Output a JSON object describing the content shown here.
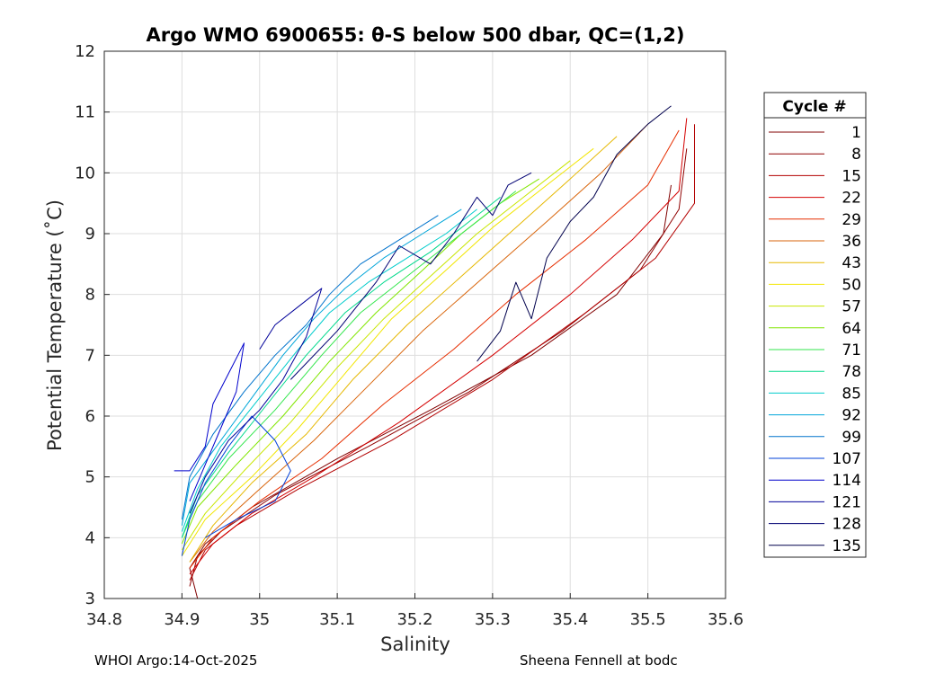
{
  "chart_data": {
    "type": "line",
    "title": "Argo WMO 6900655: θ-S below 500 dbar,  QC=(1,2)",
    "xlabel": "Salinity",
    "ylabel": "Potential Temperature (˚C)",
    "xlim": [
      34.8,
      35.6
    ],
    "ylim": [
      3,
      12
    ],
    "xticks": [
      "34.8",
      "34.9",
      "35",
      "35.1",
      "35.2",
      "35.3",
      "35.4",
      "35.5",
      "35.6"
    ],
    "yticks": [
      "3",
      "4",
      "5",
      "6",
      "7",
      "8",
      "9",
      "10",
      "11",
      "12"
    ],
    "grid": true,
    "legend_title": "Cycle #",
    "legend_position": "right",
    "series": [
      {
        "name": "1",
        "color": "#800000",
        "x": [
          34.92,
          34.91,
          34.93,
          34.99,
          35.1,
          35.22,
          35.35,
          35.46,
          35.52,
          35.53
        ],
        "y": [
          3.0,
          3.5,
          3.9,
          4.5,
          5.3,
          6.1,
          7.0,
          8.0,
          9.0,
          9.8
        ]
      },
      {
        "name": "8",
        "color": "#8f0000",
        "x": [
          34.91,
          34.92,
          34.95,
          35.02,
          35.14,
          35.27,
          35.39,
          35.49,
          35.54,
          35.55
        ],
        "y": [
          3.2,
          3.7,
          4.1,
          4.7,
          5.5,
          6.4,
          7.4,
          8.4,
          9.4,
          10.4
        ]
      },
      {
        "name": "15",
        "color": "#b30000",
        "x": [
          34.91,
          34.93,
          34.97,
          35.05,
          35.17,
          35.3,
          35.42,
          35.51,
          35.56,
          35.56
        ],
        "y": [
          3.3,
          3.8,
          4.2,
          4.8,
          5.6,
          6.6,
          7.7,
          8.6,
          9.5,
          10.8
        ]
      },
      {
        "name": "22",
        "color": "#d40000",
        "x": [
          34.91,
          34.94,
          34.99,
          35.07,
          35.18,
          35.3,
          35.4,
          35.48,
          35.54,
          35.55
        ],
        "y": [
          3.4,
          3.9,
          4.4,
          5.0,
          5.9,
          7.0,
          8.0,
          8.9,
          9.7,
          10.9
        ]
      },
      {
        "name": "29",
        "color": "#e62e00",
        "x": [
          34.91,
          34.94,
          35.0,
          35.08,
          35.16,
          35.25,
          35.33,
          35.42,
          35.5,
          35.54
        ],
        "y": [
          3.5,
          4.0,
          4.6,
          5.3,
          6.2,
          7.1,
          8.0,
          8.9,
          9.8,
          10.7
        ]
      },
      {
        "name": "36",
        "color": "#d9660d",
        "x": [
          34.91,
          34.94,
          35.0,
          35.07,
          35.14,
          35.21,
          35.29,
          35.37,
          35.44,
          35.5
        ],
        "y": [
          3.6,
          4.1,
          4.8,
          5.6,
          6.5,
          7.4,
          8.3,
          9.2,
          10.0,
          10.8
        ]
      },
      {
        "name": "43",
        "color": "#e6b800",
        "x": [
          34.91,
          34.94,
          34.99,
          35.06,
          35.12,
          35.19,
          35.26,
          35.33,
          35.4,
          35.46
        ],
        "y": [
          3.6,
          4.2,
          4.9,
          5.7,
          6.6,
          7.5,
          8.3,
          9.1,
          9.9,
          10.6
        ]
      },
      {
        "name": "50",
        "color": "#f2e600",
        "x": [
          34.9,
          34.93,
          34.99,
          35.05,
          35.11,
          35.17,
          35.24,
          35.3,
          35.37,
          35.43
        ],
        "y": [
          3.7,
          4.3,
          5.0,
          5.8,
          6.7,
          7.6,
          8.4,
          9.1,
          9.8,
          10.4
        ]
      },
      {
        "name": "57",
        "color": "#c8e600",
        "x": [
          34.9,
          34.93,
          34.98,
          35.04,
          35.1,
          35.16,
          35.22,
          35.28,
          35.34,
          35.4
        ],
        "y": [
          3.8,
          4.4,
          5.1,
          5.9,
          6.8,
          7.6,
          8.3,
          9.0,
          9.6,
          10.2
        ]
      },
      {
        "name": "64",
        "color": "#80e600",
        "x": [
          34.9,
          34.92,
          34.97,
          35.03,
          35.09,
          35.15,
          35.21,
          35.26,
          35.31,
          35.36
        ],
        "y": [
          3.9,
          4.5,
          5.2,
          6.0,
          6.9,
          7.7,
          8.4,
          9.0,
          9.5,
          9.9
        ]
      },
      {
        "name": "71",
        "color": "#33e64d",
        "x": [
          34.9,
          34.92,
          34.96,
          35.02,
          35.08,
          35.13,
          35.19,
          35.24,
          35.29,
          35.33
        ],
        "y": [
          4.0,
          4.6,
          5.3,
          6.1,
          7.0,
          7.7,
          8.3,
          8.8,
          9.3,
          9.7
        ]
      },
      {
        "name": "78",
        "color": "#00d98c",
        "x": [
          34.9,
          34.92,
          34.96,
          35.01,
          35.06,
          35.11,
          35.16,
          35.22,
          35.27,
          35.31
        ],
        "y": [
          4.0,
          4.7,
          5.4,
          6.2,
          7.0,
          7.7,
          8.2,
          8.7,
          9.2,
          9.6
        ]
      },
      {
        "name": "85",
        "color": "#00cccc",
        "x": [
          34.9,
          34.92,
          34.95,
          35.0,
          35.05,
          35.09,
          35.14,
          35.19,
          35.24,
          35.28
        ],
        "y": [
          4.1,
          4.8,
          5.5,
          6.3,
          7.1,
          7.7,
          8.2,
          8.6,
          9.0,
          9.4
        ]
      },
      {
        "name": "92",
        "color": "#00a6d9",
        "x": [
          34.9,
          34.91,
          34.95,
          34.99,
          35.03,
          35.07,
          35.11,
          35.16,
          35.21,
          35.26
        ],
        "y": [
          4.2,
          4.9,
          5.6,
          6.3,
          7.0,
          7.6,
          8.1,
          8.6,
          9.0,
          9.4
        ]
      },
      {
        "name": "99",
        "color": "#0073cc",
        "x": [
          34.9,
          34.91,
          34.94,
          34.98,
          35.02,
          35.06,
          35.09,
          35.13,
          35.18,
          35.23
        ],
        "y": [
          4.3,
          5.0,
          5.7,
          6.4,
          7.0,
          7.5,
          8.0,
          8.5,
          8.9,
          9.3
        ]
      },
      {
        "name": "107",
        "color": "#0040d9",
        "x": [
          34.9,
          34.91,
          34.93,
          34.96,
          34.99,
          35.02,
          35.04,
          35.02,
          34.97,
          34.93
        ],
        "y": [
          3.7,
          4.3,
          4.9,
          5.5,
          6.0,
          5.6,
          5.1,
          4.6,
          4.3,
          4.0
        ]
      },
      {
        "name": "114",
        "color": "#0000cc",
        "x": [
          34.89,
          34.91,
          34.93,
          34.94,
          34.96,
          34.98,
          34.97,
          34.95,
          34.93,
          34.91
        ],
        "y": [
          5.1,
          5.1,
          5.5,
          6.2,
          6.7,
          7.2,
          6.4,
          5.8,
          5.2,
          4.6
        ]
      },
      {
        "name": "121",
        "color": "#000099",
        "x": [
          34.91,
          34.93,
          34.96,
          35.0,
          35.03,
          35.06,
          35.08,
          35.05,
          35.02,
          35.0
        ],
        "y": [
          4.4,
          5.0,
          5.6,
          6.1,
          6.6,
          7.3,
          8.1,
          7.8,
          7.5,
          7.1
        ]
      },
      {
        "name": "128",
        "color": "#000073",
        "x": [
          35.04,
          35.1,
          35.15,
          35.18,
          35.22,
          35.25,
          35.28,
          35.3,
          35.32,
          35.35
        ],
        "y": [
          6.6,
          7.4,
          8.2,
          8.8,
          8.5,
          9.0,
          9.6,
          9.3,
          9.8,
          10.0
        ]
      },
      {
        "name": "135",
        "color": "#00004d",
        "x": [
          35.28,
          35.31,
          35.33,
          35.35,
          35.37,
          35.4,
          35.43,
          35.46,
          35.5,
          35.53
        ],
        "y": [
          6.9,
          7.4,
          8.2,
          7.6,
          8.6,
          9.2,
          9.6,
          10.3,
          10.8,
          11.1
        ]
      }
    ]
  },
  "footer": {
    "left": "WHOI Argo:14-Oct-2025",
    "right": "Sheena Fennell at bodc"
  }
}
